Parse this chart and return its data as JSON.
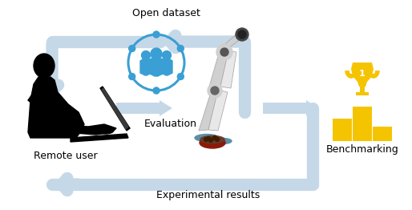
{
  "bg_color": "#ffffff",
  "arrow_color": "#c5d8e8",
  "text_color": "#000000",
  "icon_color": "#3a9fd4",
  "gold_color": "#f5c400",
  "gold_dark": "#e6b800",
  "labels": {
    "open_dataset": "Open dataset",
    "evaluation": "Evaluation",
    "benchmarking": "Benchmarking",
    "remote_user": "Remote user",
    "experimental_results": "Experimental results"
  },
  "figsize": [
    5.14,
    2.62
  ],
  "dpi": 100
}
